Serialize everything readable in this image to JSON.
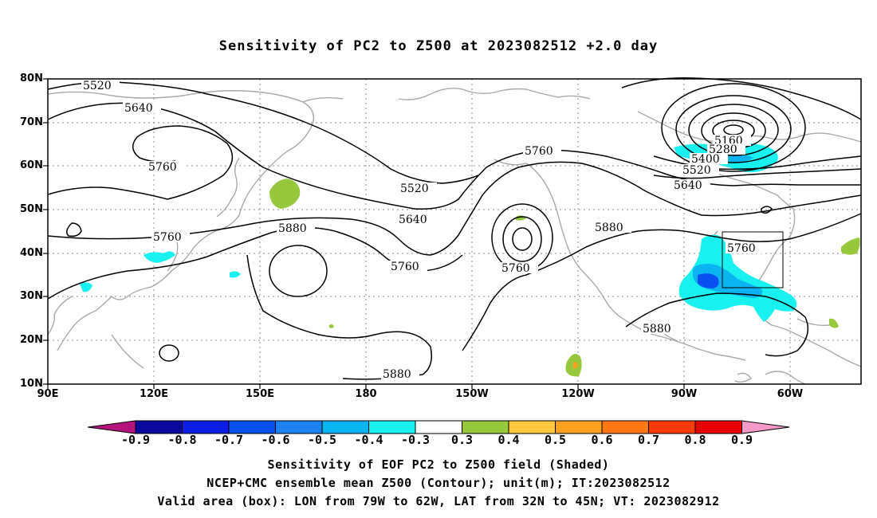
{
  "title": "Sensitivity of PC2 to Z500 at 2023082512 +2.0 day",
  "lat_labels": [
    "80N",
    "70N",
    "60N",
    "50N",
    "40N",
    "30N",
    "20N",
    "10N"
  ],
  "lon_labels": [
    "90E",
    "120E",
    "150E",
    "180",
    "150W",
    "120W",
    "90W",
    "60W"
  ],
  "contour_labels": [
    {
      "text": "5520"
    },
    {
      "text": "5640"
    },
    {
      "text": "5760"
    },
    {
      "text": "5520"
    },
    {
      "text": "5640"
    },
    {
      "text": "5760"
    },
    {
      "text": "5880"
    },
    {
      "text": "5760"
    },
    {
      "text": "5760"
    },
    {
      "text": "5760"
    },
    {
      "text": "5880"
    },
    {
      "text": "5160"
    },
    {
      "text": "5280"
    },
    {
      "text": "5400"
    },
    {
      "text": "5520"
    },
    {
      "text": "5640"
    },
    {
      "text": "5760"
    },
    {
      "text": "5880"
    },
    {
      "text": "5880"
    }
  ],
  "colorbar": {
    "labels": [
      "-0.9",
      "-0.8",
      "-0.7",
      "-0.6",
      "-0.5",
      "-0.4",
      "-0.3",
      "0.3",
      "0.4",
      "0.5",
      "0.6",
      "0.7",
      "0.8",
      "0.9"
    ],
    "colors": [
      "#b5137d",
      "#0a0aa0",
      "#0a1ee6",
      "#0a50f0",
      "#1e82f0",
      "#0ab4f0",
      "#19f0f0",
      "#ffffff",
      "#96c83c",
      "#ffc83c",
      "#ffa01e",
      "#ff7814",
      "#ff3c0a",
      "#e60000",
      "#f59ac8"
    ]
  },
  "footer": {
    "line1": "Sensitivity of EOF PC2 to Z500 field (Shaded)",
    "line2": "NCEP+CMC ensemble mean Z500 (Contour); unit(m); IT:2023082512",
    "line3": "Valid area (box): LON from 79W to 62W, LAT from 32N to 45N; VT: 2023082912"
  }
}
